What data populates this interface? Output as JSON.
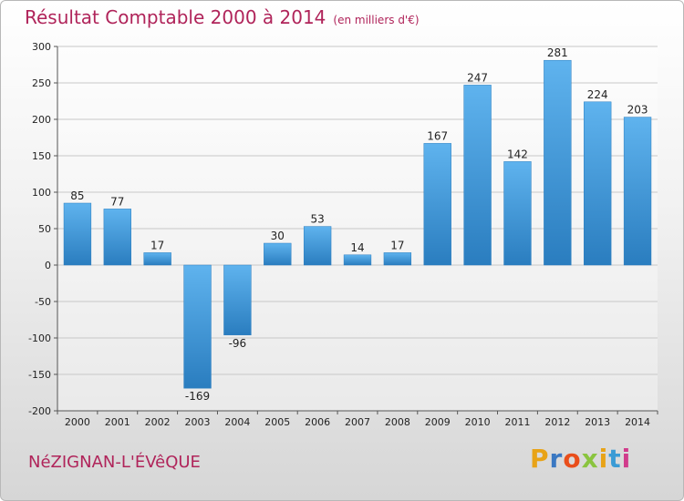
{
  "header": {
    "title": "Résultat Comptable 2000 à 2014",
    "unit": "(en milliers d'€)"
  },
  "footer": {
    "commune": "NéZIGNAN-L'ÉVêQUE",
    "logo_letters": [
      "P",
      "r",
      "o",
      "x",
      "i",
      "t",
      "i"
    ],
    "logo_colors": [
      "#e8a317",
      "#3a78c2",
      "#e94e1b",
      "#8ac43f",
      "#e8a317",
      "#3a9bd5",
      "#d13c8c"
    ]
  },
  "colors": {
    "bar_top": "#5fb3ee",
    "bar_bottom": "#2a7dbf",
    "grid": "#c8c8c8",
    "title": "#b0245a"
  },
  "chart_data": {
    "type": "bar",
    "categories": [
      "2000",
      "2001",
      "2002",
      "2003",
      "2004",
      "2005",
      "2006",
      "2007",
      "2008",
      "2009",
      "2010",
      "2011",
      "2012",
      "2013",
      "2014"
    ],
    "values": [
      85,
      77,
      17,
      -169,
      -96,
      30,
      53,
      14,
      17,
      167,
      247,
      142,
      281,
      224,
      203
    ],
    "title": "Résultat Comptable 2000 à 2014",
    "xlabel": "",
    "ylabel": "",
    "ylim": [
      -200,
      300
    ],
    "yticks": [
      -200,
      -150,
      -100,
      -50,
      0,
      50,
      100,
      150,
      200,
      250,
      300
    ],
    "grid": true,
    "legend": "none"
  }
}
